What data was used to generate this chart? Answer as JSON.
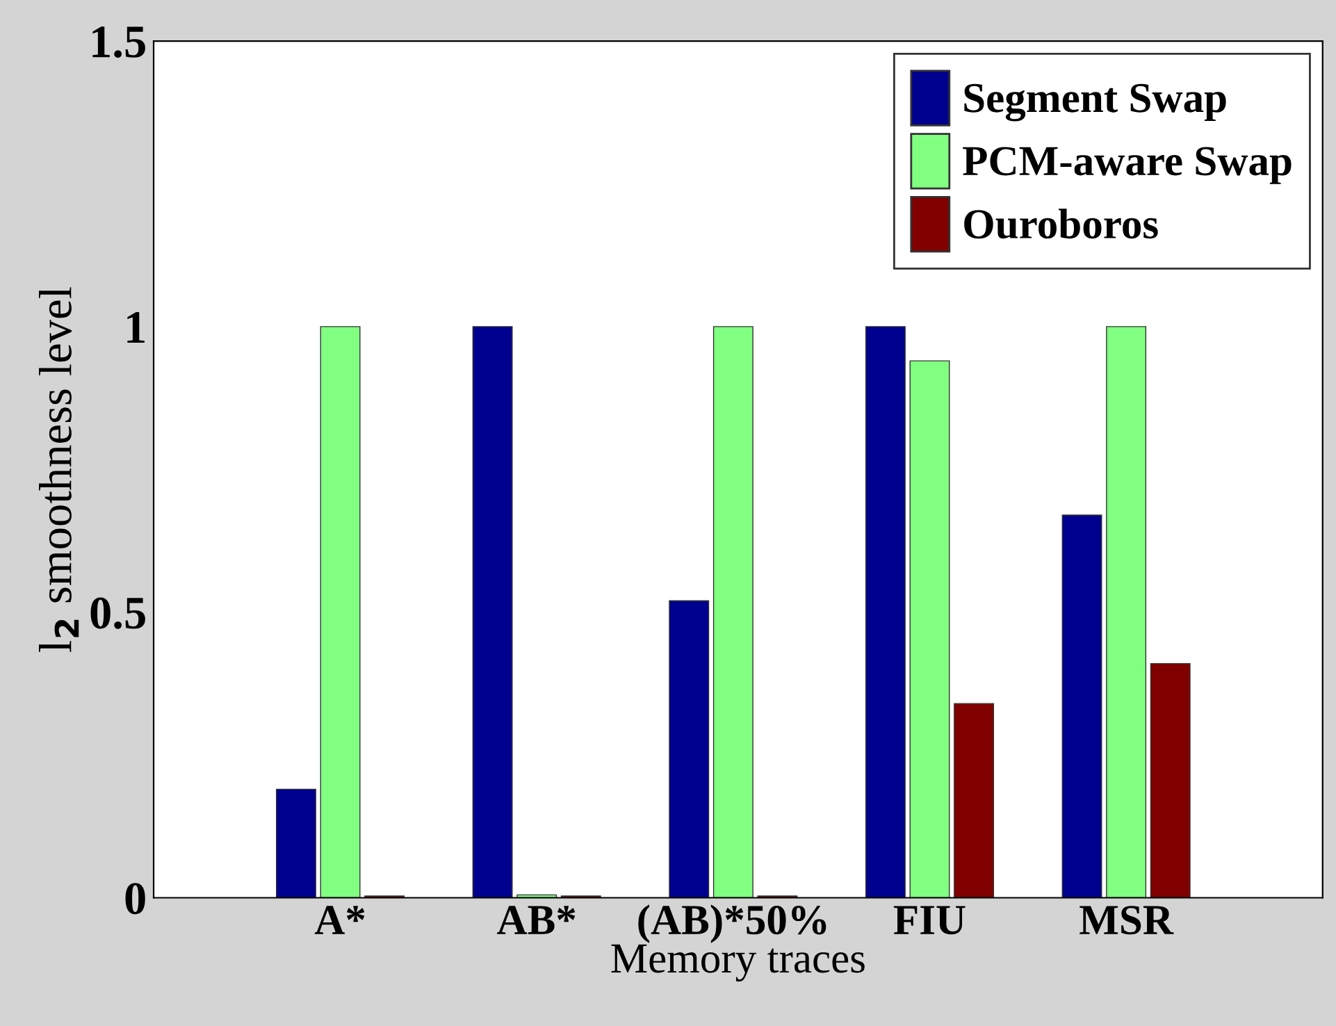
{
  "chart_data": {
    "type": "bar",
    "xlabel": "Memory traces",
    "ylabel": "l$_{2}$ smoothness level",
    "categories": [
      "A*",
      "AB*",
      "(AB)*50%",
      "FIU",
      "MSR"
    ],
    "series": [
      {
        "name": "Segment Swap",
        "color": "#00008f",
        "values": [
          0.19,
          1,
          0.52,
          1,
          0.67
        ]
      },
      {
        "name": "PCM-aware Swap",
        "color": "#80ff80",
        "values": [
          1,
          0.005,
          1,
          0.94,
          1
        ]
      },
      {
        "name": "Ouroboros",
        "color": "#800000",
        "values": [
          0.003,
          0.003,
          0.003,
          0.34,
          0.41
        ]
      }
    ],
    "ylim": [
      0,
      1.5
    ],
    "yticks": [
      0,
      0.5,
      1,
      1.5
    ],
    "grid": false,
    "legend": "top right"
  }
}
